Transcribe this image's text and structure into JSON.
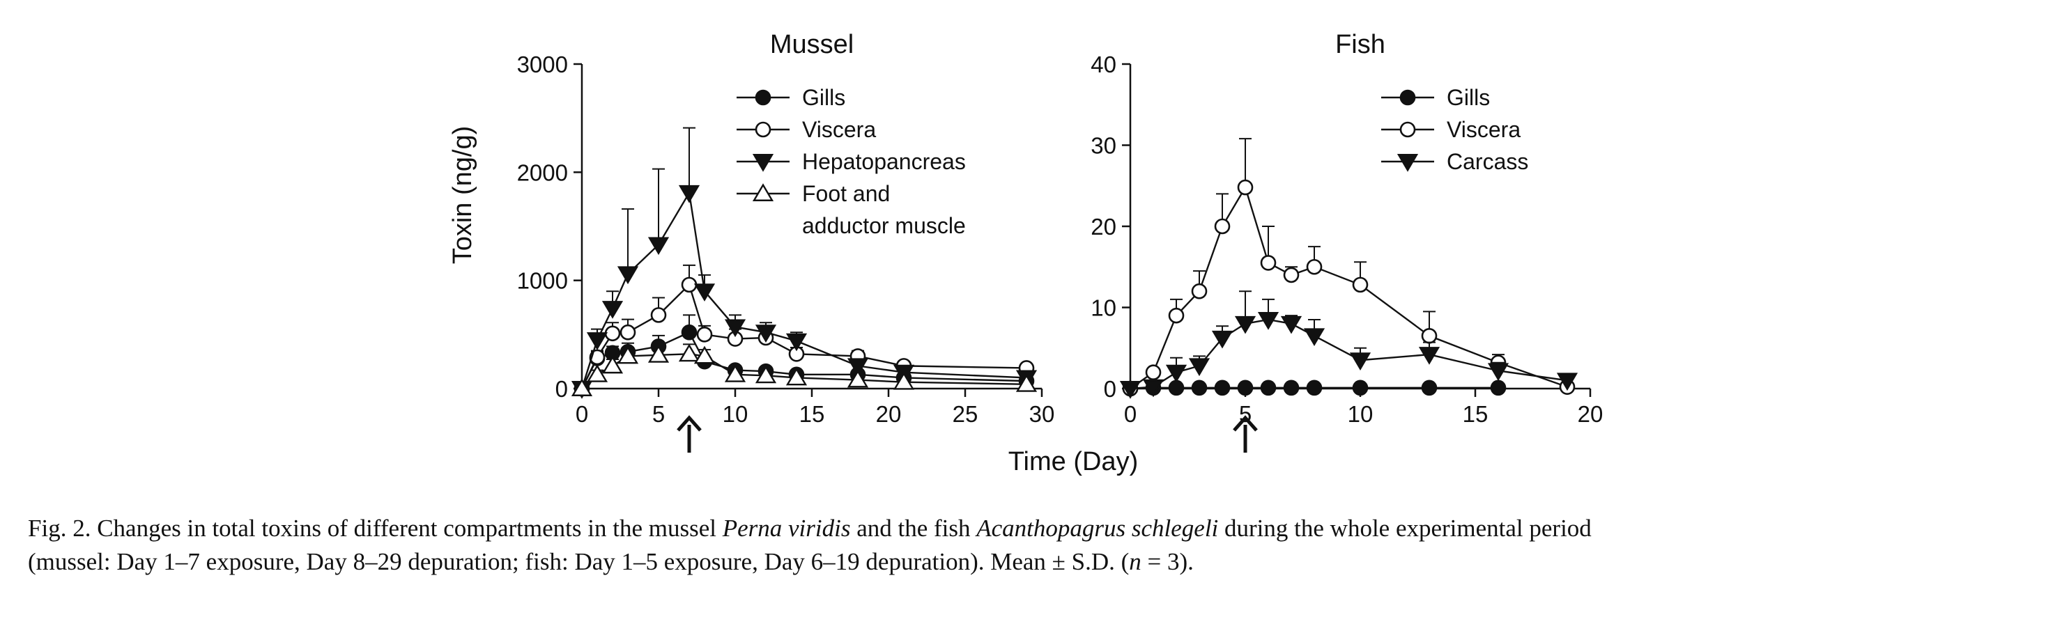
{
  "figure": {
    "y_axis_label": "Toxin  (ng/g)",
    "shared_x_label": "Time (Day)"
  },
  "chart_data": [
    {
      "type": "line",
      "title": "Mussel",
      "ylabel": "Toxin  (ng/g)",
      "xlabel": "Time (Day)",
      "xlim": [
        0,
        30
      ],
      "ylim": [
        0,
        3000
      ],
      "xticks": [
        0,
        5,
        10,
        15,
        20,
        25,
        30
      ],
      "yticks": [
        0,
        1000,
        2000,
        3000
      ],
      "legend_position": "top-right",
      "arrow_at_day": 7,
      "series": [
        {
          "name": "Gills",
          "marker": "circle-filled",
          "x": [
            0,
            1,
            2,
            3,
            5,
            7,
            8,
            10,
            12,
            14,
            18,
            21,
            29
          ],
          "y": [
            0,
            280,
            330,
            340,
            390,
            520,
            250,
            170,
            160,
            130,
            130,
            100,
            70
          ],
          "err": [
            0,
            60,
            60,
            80,
            100,
            160,
            40,
            40,
            30,
            30,
            30,
            20,
            15
          ]
        },
        {
          "name": "Viscera",
          "marker": "circle-open",
          "x": [
            0,
            1,
            2,
            3,
            5,
            7,
            8,
            10,
            12,
            14,
            18,
            21,
            29
          ],
          "y": [
            0,
            290,
            510,
            520,
            680,
            960,
            500,
            460,
            470,
            320,
            300,
            210,
            190
          ],
          "err": [
            0,
            60,
            100,
            120,
            160,
            180,
            80,
            90,
            70,
            60,
            50,
            40,
            30
          ]
        },
        {
          "name": "Hepatopancreas",
          "marker": "triangle-down-filled",
          "x": [
            0,
            1,
            2,
            3,
            5,
            7,
            8,
            10,
            12,
            14,
            18,
            21,
            29
          ],
          "y": [
            0,
            450,
            740,
            1060,
            1330,
            1810,
            900,
            570,
            520,
            440,
            210,
            150,
            100
          ],
          "err": [
            0,
            100,
            160,
            600,
            700,
            600,
            150,
            110,
            90,
            80,
            60,
            50,
            30
          ]
        },
        {
          "name": "Foot and adductor muscle",
          "marker": "triangle-up-open",
          "x": [
            0,
            1,
            2,
            3,
            5,
            7,
            8,
            10,
            12,
            14,
            18,
            21,
            29
          ],
          "y": [
            0,
            130,
            210,
            300,
            310,
            320,
            300,
            130,
            120,
            100,
            80,
            60,
            40
          ],
          "err": [
            0,
            40,
            60,
            80,
            70,
            90,
            60,
            40,
            30,
            30,
            20,
            15,
            10
          ]
        }
      ],
      "legend_lines": [
        [
          "Gills"
        ],
        [
          "Viscera"
        ],
        [
          "Hepatopancreas"
        ],
        [
          "Foot and",
          "adductor muscle"
        ]
      ]
    },
    {
      "type": "line",
      "title": "Fish",
      "ylabel": "",
      "xlabel": "Time (Day)",
      "xlim": [
        0,
        20
      ],
      "ylim": [
        0,
        40
      ],
      "xticks": [
        0,
        5,
        10,
        15,
        20
      ],
      "yticks": [
        0,
        10,
        20,
        30,
        40
      ],
      "legend_position": "top-right",
      "arrow_at_day": 5,
      "series": [
        {
          "name": "Gills",
          "marker": "circle-filled",
          "x": [
            0,
            1,
            2,
            3,
            4,
            5,
            6,
            7,
            8,
            10,
            13,
            16
          ],
          "y": [
            0,
            0.1,
            0.1,
            0.1,
            0.1,
            0.1,
            0.1,
            0.1,
            0.1,
            0.1,
            0.1,
            0.1
          ],
          "err": [
            0,
            0,
            0,
            0,
            0,
            0,
            0,
            0,
            0,
            0,
            0,
            0
          ]
        },
        {
          "name": "Viscera",
          "marker": "circle-open",
          "x": [
            0,
            1,
            2,
            3,
            4,
            5,
            6,
            7,
            8,
            10,
            13,
            16,
            19
          ],
          "y": [
            0,
            2,
            9,
            12,
            20,
            24.8,
            15.5,
            14,
            15,
            12.8,
            6.5,
            3.2,
            0.2
          ],
          "err": [
            0,
            0.5,
            2,
            2.5,
            4,
            6,
            4.5,
            1,
            2.5,
            2.8,
            3,
            1,
            0
          ]
        },
        {
          "name": "Carcass",
          "marker": "triangle-down-filled",
          "x": [
            0,
            1,
            2,
            3,
            4,
            5,
            6,
            7,
            8,
            10,
            13,
            16,
            19
          ],
          "y": [
            0,
            0.2,
            2,
            2.8,
            6.2,
            8,
            8.5,
            8,
            6.5,
            3.5,
            4.2,
            2.2,
            1
          ],
          "err": [
            0,
            0.3,
            1.8,
            1.2,
            1.5,
            4,
            2.5,
            1,
            2,
            1.5,
            1.5,
            1,
            0
          ]
        }
      ],
      "legend_lines": [
        [
          "Gills"
        ],
        [
          "Viscera"
        ],
        [
          "Carcass"
        ]
      ]
    }
  ],
  "caption": {
    "line1_pre": "Fig. 2. Changes in total toxins of different compartments in the mussel ",
    "line1_sp1": "Perna viridis",
    "line1_mid": " and the fish ",
    "line1_sp2": "Acanthopagrus schlegeli",
    "line1_post": " during the whole experimental period",
    "line2_pre": "(mussel: Day 1–7 exposure, Day 8–29 depuration; fish: Day 1–5 exposure, Day 6–19 depuration). Mean ± S.D. (",
    "line2_n": "n",
    "line2_post": " = 3)."
  }
}
